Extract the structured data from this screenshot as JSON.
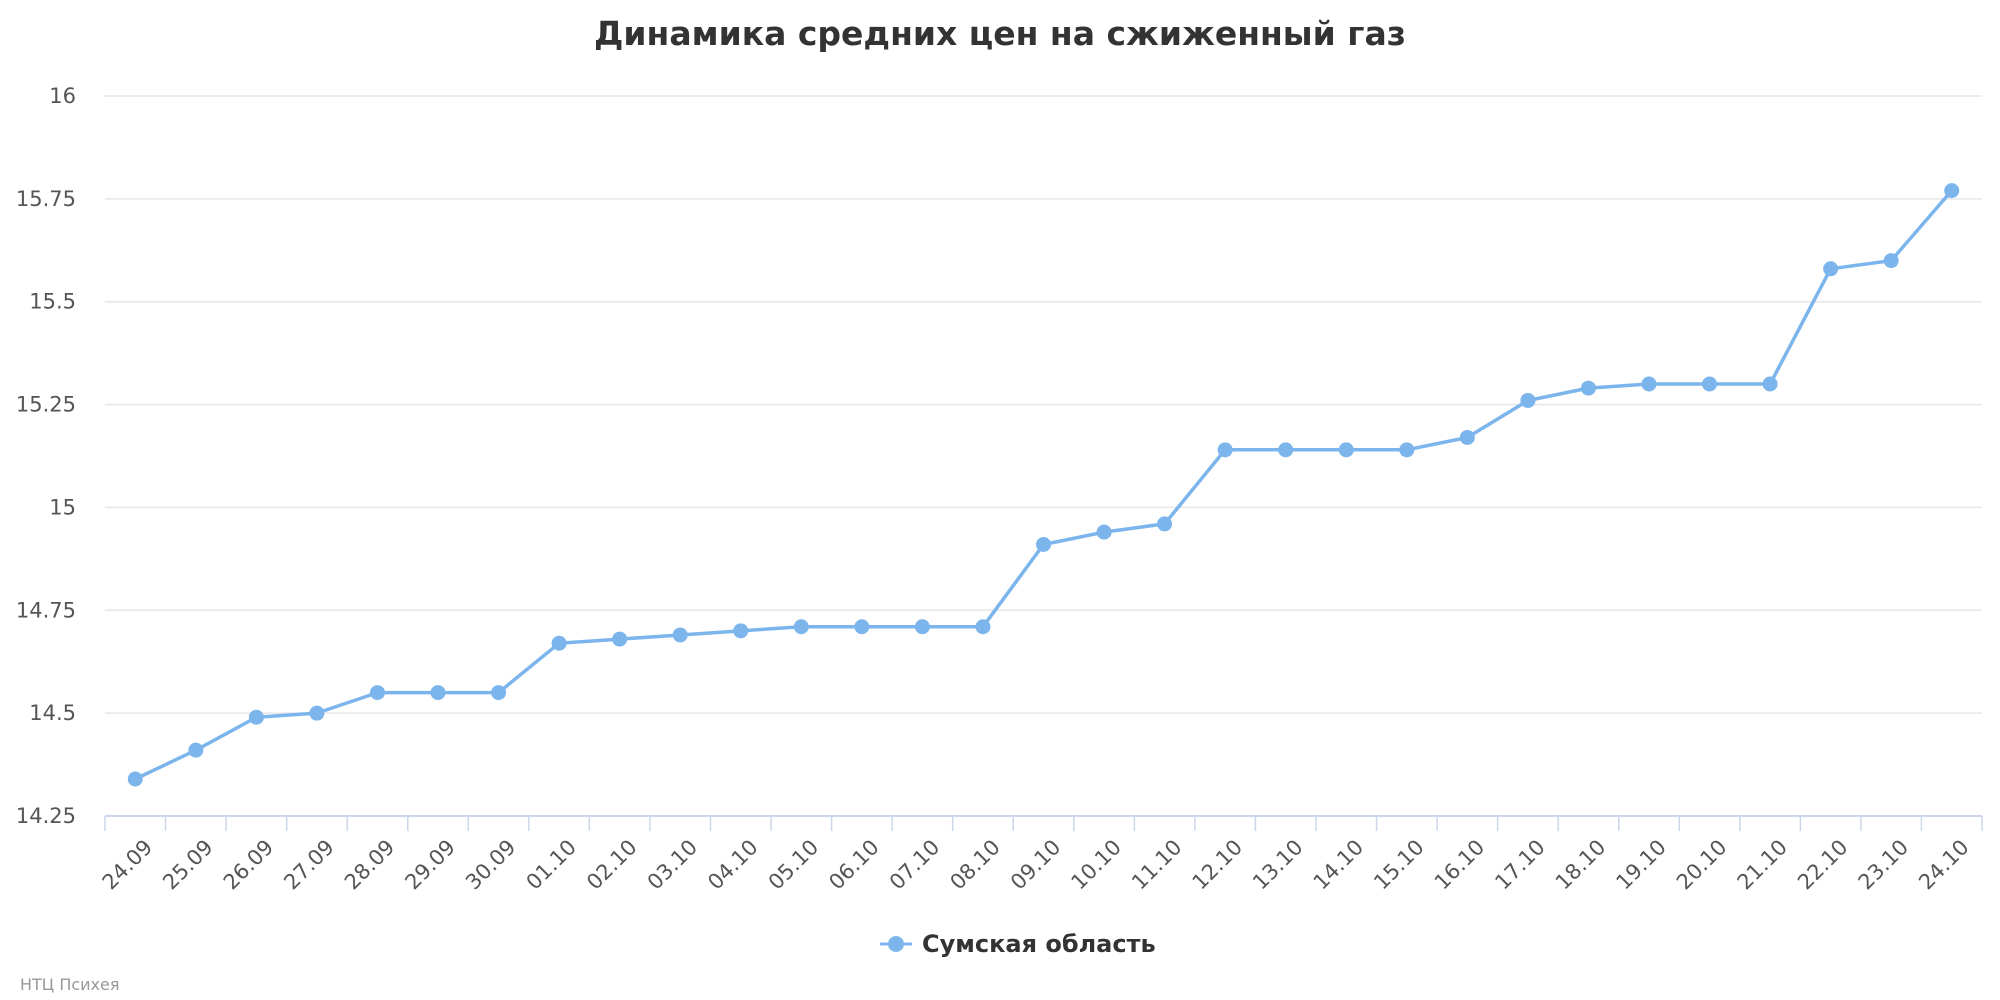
{
  "chart_data": {
    "type": "line",
    "title": "Динамика средних цен на сжиженный газ",
    "xlabel": "",
    "ylabel": "",
    "ylim": [
      14.25,
      16
    ],
    "yticks": [
      "14.25",
      "14.5",
      "14.75",
      "15",
      "15.25",
      "15.5",
      "15.75",
      "16"
    ],
    "grid": true,
    "legend_position": "bottom-center",
    "categories": [
      "24.09",
      "25.09",
      "26.09",
      "27.09",
      "28.09",
      "29.09",
      "30.09",
      "01.10",
      "02.10",
      "03.10",
      "04.10",
      "05.10",
      "06.10",
      "07.10",
      "08.10",
      "09.10",
      "10.10",
      "11.10",
      "12.10",
      "13.10",
      "14.10",
      "15.10",
      "16.10",
      "17.10",
      "18.10",
      "19.10",
      "20.10",
      "21.10",
      "22.10",
      "23.10",
      "24.10"
    ],
    "series": [
      {
        "name": "Сумская область",
        "color": "#7cb5ec",
        "values": [
          14.34,
          14.41,
          14.49,
          14.5,
          14.55,
          14.55,
          14.55,
          14.67,
          14.68,
          14.69,
          14.7,
          14.71,
          14.71,
          14.71,
          14.71,
          14.91,
          14.94,
          14.96,
          15.14,
          15.14,
          15.14,
          15.14,
          15.17,
          15.26,
          15.29,
          15.3,
          15.3,
          15.3,
          15.58,
          15.6,
          15.77
        ]
      }
    ]
  },
  "credit": "НТЦ Психея"
}
